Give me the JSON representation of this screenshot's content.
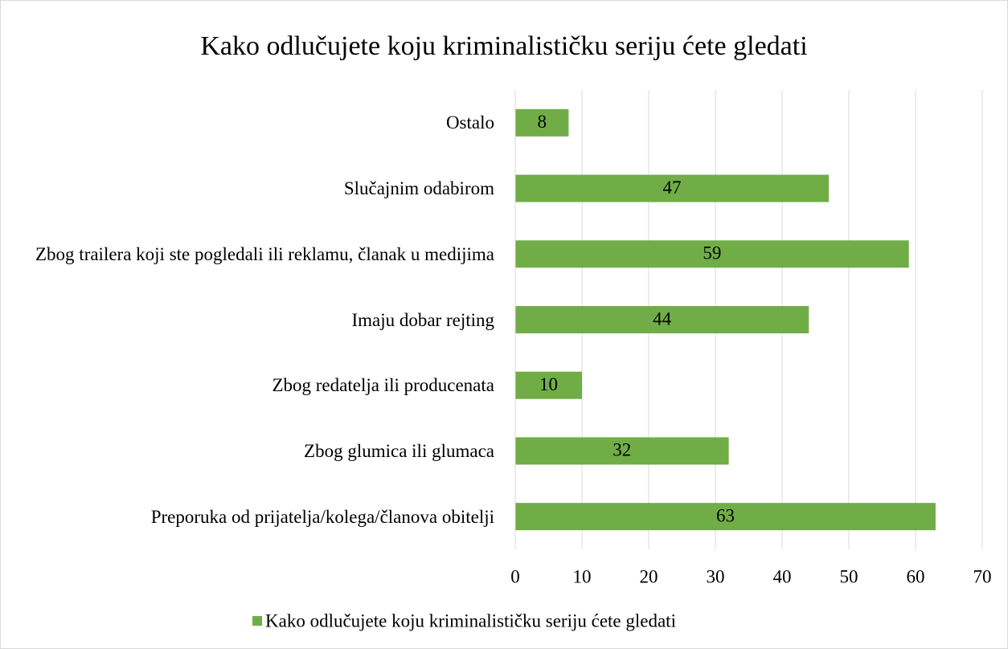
{
  "chart_data": {
    "type": "bar",
    "orientation": "horizontal",
    "title": "Kako odlučujete koju kriminalističku seriju ćete gledati",
    "categories": [
      "Preporuka od prijatelja/kolega/članova obitelji",
      "Zbog glumica ili glumaca",
      "Zbog redatelja ili producenata",
      "Imaju dobar rejting",
      "Zbog trailera koji ste pogledali ili reklamu, članak u medijima",
      "Slučajnim odabirom",
      "Ostalo"
    ],
    "series": [
      {
        "name": "Kako odlučujete koju kriminalističku seriju ćete gledati",
        "color": "#70ad47",
        "values": [
          63,
          32,
          10,
          44,
          59,
          47,
          8
        ]
      }
    ],
    "xlim": [
      0,
      70
    ],
    "xticks": [
      0,
      10,
      20,
      30,
      40,
      50,
      60,
      70
    ],
    "grid": true,
    "legend": "bottom"
  }
}
